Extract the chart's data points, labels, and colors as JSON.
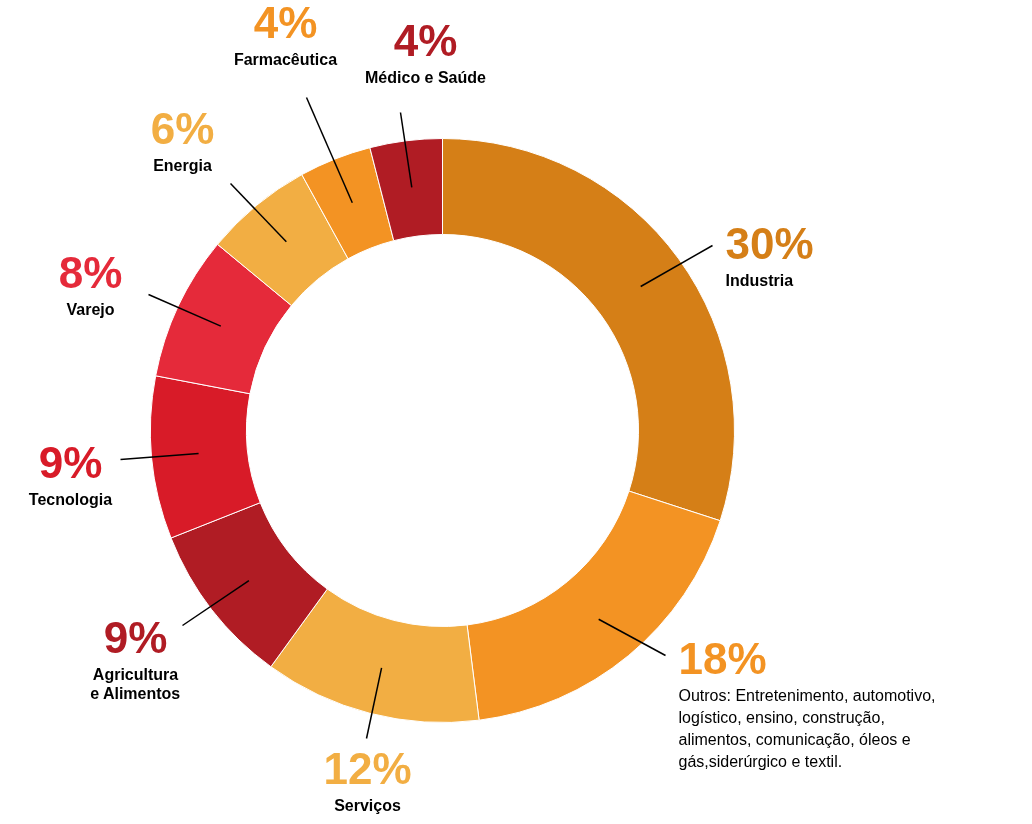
{
  "chart_data": {
    "type": "donut",
    "categories": [
      "Industria",
      null,
      "Serviços",
      "Agricultura e Alimentos",
      "Tecnologia",
      "Varejo",
      "Energia",
      "Farmacêutica",
      "Médico e Saúde"
    ],
    "values": [
      30,
      18,
      12,
      9,
      9,
      8,
      6,
      4,
      4
    ],
    "value_labels": [
      "30%",
      "18%",
      "12%",
      "9%",
      "9%",
      "8%",
      "6%",
      "4%",
      "4%"
    ],
    "colors": [
      "#d57f17",
      "#f39323",
      "#f2ae43",
      "#b01c24",
      "#d81b28",
      "#e52a3a",
      "#f2ae43",
      "#f39323",
      "#b01c24"
    ],
    "annotations": [
      "Outros: Entretenimento, automotivo, logístico, ensino, construção, alimentos, comunicação, óleos e gás,siderúrgico e textil."
    ]
  }
}
